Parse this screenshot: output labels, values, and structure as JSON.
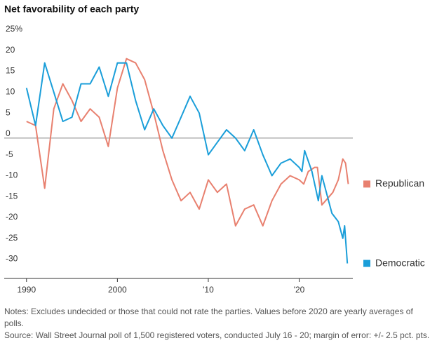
{
  "chart_data": {
    "type": "line",
    "title": "Net favorability of each party",
    "notes": "Notes: Excludes undecided or those that could not rate the parties. Values before 2020 are yearly averages of polls.",
    "source": "Source: Wall Street Journal poll of 1,500 registered voters, conducted July 16 - 20; margin of error: +/- 2.5 pct. pts.",
    "xlim": [
      1989.4,
      2025.9
    ],
    "xticks": [
      1990,
      2000,
      {
        "value": 2010,
        "label": "'10"
      },
      {
        "value": 2020,
        "label": "'20"
      }
    ],
    "ylim": [
      -33.6,
      25
    ],
    "yticks": [
      {
        "value": 25,
        "label": "25%"
      },
      20,
      15,
      10,
      5,
      0,
      -5,
      -10,
      -15,
      -20,
      -25,
      -30
    ],
    "zero_line": true,
    "series": [
      {
        "name": "Republican",
        "color": "#e8806f",
        "x": [
          1990,
          1991,
          1992,
          1993,
          1994,
          1995,
          1996,
          1997,
          1998,
          1999,
          2000,
          2001,
          2002,
          2003,
          2004,
          2005,
          2006,
          2007,
          2008,
          2009,
          2010,
          2011,
          2012,
          2013,
          2014,
          2015,
          2016,
          2017,
          2018,
          2019,
          2020,
          2020.5,
          2021,
          2021.7,
          2022,
          2022.5,
          2023.7,
          2024.3,
          2024.8,
          2025.1,
          2025.4
        ],
        "values": [
          4,
          3,
          -12,
          7,
          13,
          9,
          4,
          7,
          5,
          -2,
          12,
          19,
          18,
          14,
          6,
          -3,
          -10,
          -15,
          -13,
          -17,
          -10,
          -13,
          -11,
          -21,
          -17,
          -16,
          -21,
          -15,
          -11,
          -9,
          -10,
          -11,
          -8,
          -7,
          -7,
          -16,
          -13,
          -10,
          -5,
          -6,
          -11
        ]
      },
      {
        "name": "Democratic",
        "color": "#1a9ed9",
        "x": [
          1990,
          1991,
          1992,
          1993,
          1994,
          1995,
          1996,
          1997,
          1998,
          1999,
          2000,
          2001,
          2002,
          2003,
          2004,
          2005,
          2006,
          2007,
          2008,
          2009,
          2010,
          2011,
          2012,
          2013,
          2014,
          2015,
          2016,
          2017,
          2018,
          2019,
          2020,
          2020.3,
          2020.6,
          2021.4,
          2022.1,
          2022.5,
          2023.6,
          2024.3,
          2024.8,
          2025.0,
          2025.3
        ],
        "values": [
          12,
          3,
          18,
          11,
          4,
          5,
          13,
          13,
          17,
          10,
          18,
          18,
          9,
          2,
          7,
          3,
          0,
          5,
          10,
          6,
          -4,
          -1,
          2,
          0,
          -3,
          2,
          -4,
          -9,
          -6,
          -5,
          -7,
          -8,
          -3,
          -8,
          -15,
          -9,
          -18,
          -20,
          -24,
          -21,
          -30
        ]
      }
    ]
  }
}
